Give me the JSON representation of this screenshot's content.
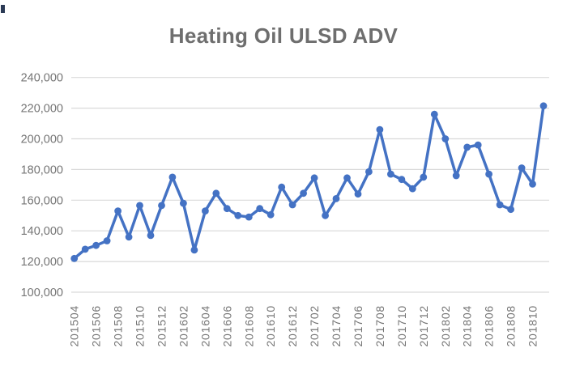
{
  "chart_data": {
    "type": "line",
    "title": "Heating Oil ULSD ADV",
    "categories": [
      "201504",
      "201505",
      "201506",
      "201507",
      "201508",
      "201509",
      "201510",
      "201511",
      "201512",
      "201601",
      "201602",
      "201603",
      "201604",
      "201605",
      "201606",
      "201607",
      "201608",
      "201609",
      "201610",
      "201611",
      "201612",
      "201701",
      "201702",
      "201703",
      "201704",
      "201705",
      "201706",
      "201707",
      "201708",
      "201709",
      "201710",
      "201711",
      "201712",
      "201801",
      "201802",
      "201803",
      "201804",
      "201805",
      "201806",
      "201807",
      "201808",
      "201809",
      "201810",
      "201811"
    ],
    "values": [
      122000,
      128000,
      130500,
      133500,
      153000,
      136000,
      156500,
      137000,
      156500,
      175000,
      158000,
      127500,
      153000,
      164500,
      154500,
      150000,
      149000,
      154500,
      150500,
      168500,
      157000,
      164500,
      174500,
      150000,
      161000,
      174500,
      164000,
      178500,
      206000,
      177000,
      173500,
      167500,
      175000,
      216000,
      200000,
      176000,
      194500,
      196000,
      177000,
      157000,
      154000,
      181000,
      170500,
      221500
    ],
    "x_tick_labels": [
      "201504",
      "201506",
      "201508",
      "201510",
      "201512",
      "201602",
      "201604",
      "201606",
      "201608",
      "201610",
      "201612",
      "201702",
      "201704",
      "201706",
      "201708",
      "201710",
      "201712",
      "201802",
      "201804",
      "201806",
      "201808",
      "201810"
    ],
    "x_label_rotation": -90,
    "ylim": [
      100000,
      240000
    ],
    "y_tick_step": 20000,
    "y_tick_labels": [
      "100,000",
      "120,000",
      "140,000",
      "160,000",
      "180,000",
      "200,000",
      "220,000",
      "240,000"
    ],
    "grid": "horizontal",
    "legend": "none"
  },
  "style": {
    "line_color": "#4472C4",
    "marker_color": "#4472C4",
    "title_color": "#6e6e6e",
    "axis_label_color": "#757575",
    "gridline_color": "#d9d9d9",
    "background_color": "#ffffff",
    "corner_mark_color": "#2b3a55"
  }
}
